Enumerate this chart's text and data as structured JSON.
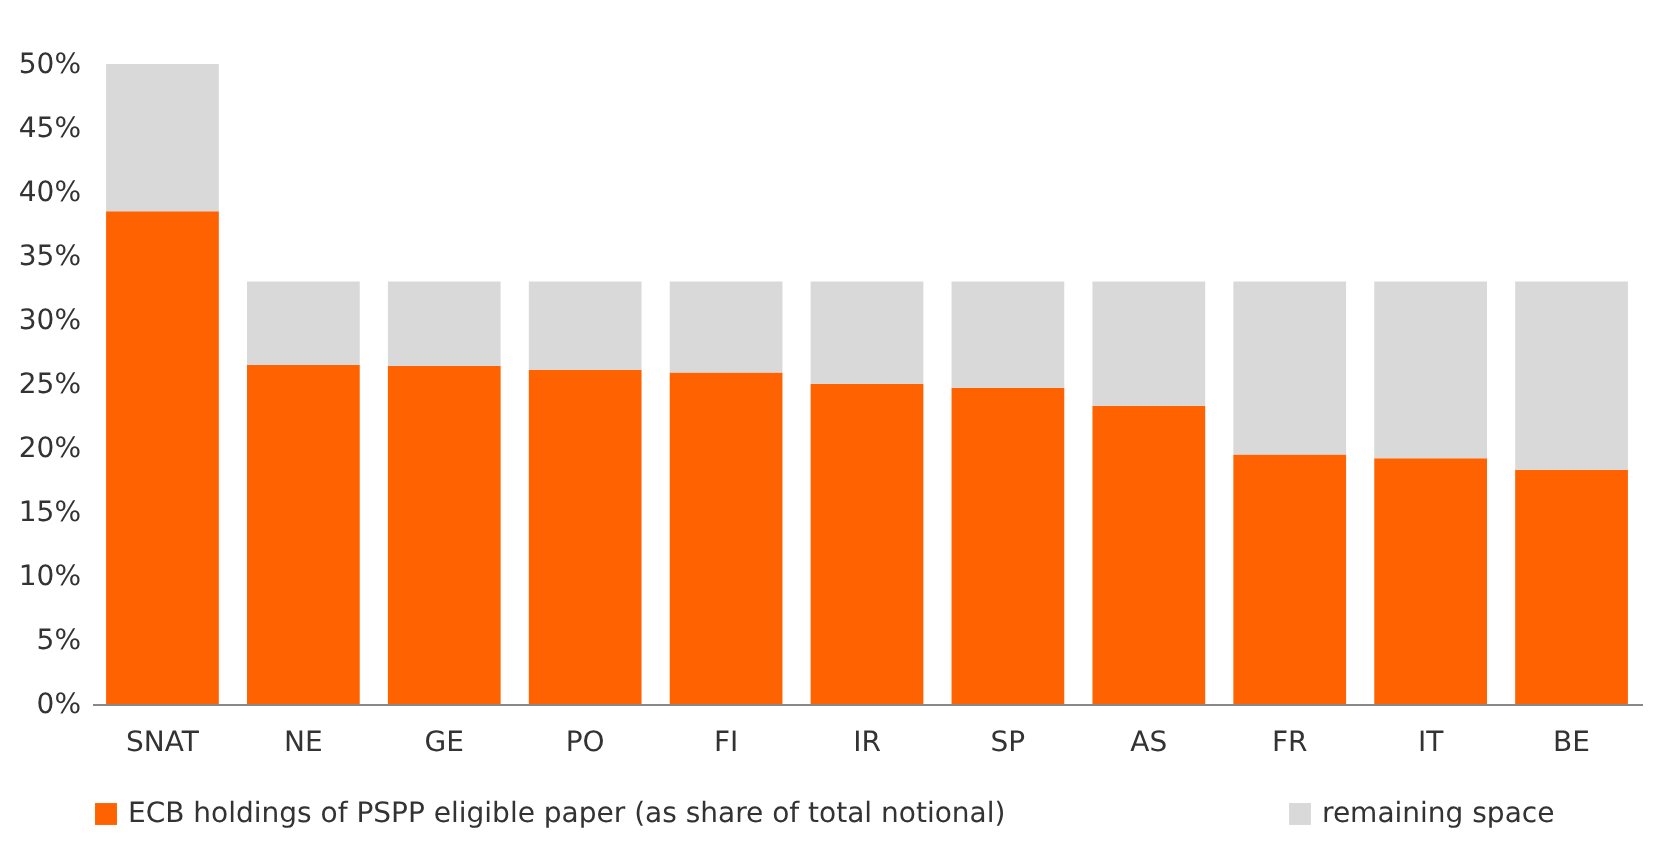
{
  "chart_data": {
    "type": "bar",
    "stacked": true,
    "categories": [
      "SNAT",
      "NE",
      "GE",
      "PO",
      "FI",
      "IR",
      "SP",
      "AS",
      "FR",
      "IT",
      "BE"
    ],
    "series": [
      {
        "name": "ECB holdings of PSPP eligible paper (as share of total notional)",
        "color": "#ff6200",
        "values": [
          38.5,
          26.5,
          26.4,
          26.1,
          25.9,
          25,
          24.7,
          23.3,
          19.5,
          19.2,
          18.3
        ]
      },
      {
        "name": "remaining space",
        "color": "#d9d9d9",
        "values": [
          11.5,
          6.5,
          6.6,
          6.9,
          7.1,
          8,
          8.3,
          9.7,
          13.5,
          13.8,
          14.7
        ]
      }
    ],
    "ylim": [
      0,
      50
    ],
    "yticks": [
      {
        "value": 0,
        "label": "0%"
      },
      {
        "value": 5,
        "label": "5%"
      },
      {
        "value": 10,
        "label": "10%"
      },
      {
        "value": 15,
        "label": "15%"
      },
      {
        "value": 20,
        "label": "20%"
      },
      {
        "value": 25,
        "label": "25%"
      },
      {
        "value": 30,
        "label": "30%"
      },
      {
        "value": 35,
        "label": "35%"
      },
      {
        "value": 40,
        "label": "40%"
      },
      {
        "value": 45,
        "label": "45%"
      },
      {
        "value": 50,
        "label": "50%"
      }
    ],
    "grid": false,
    "legend": "bottom"
  }
}
